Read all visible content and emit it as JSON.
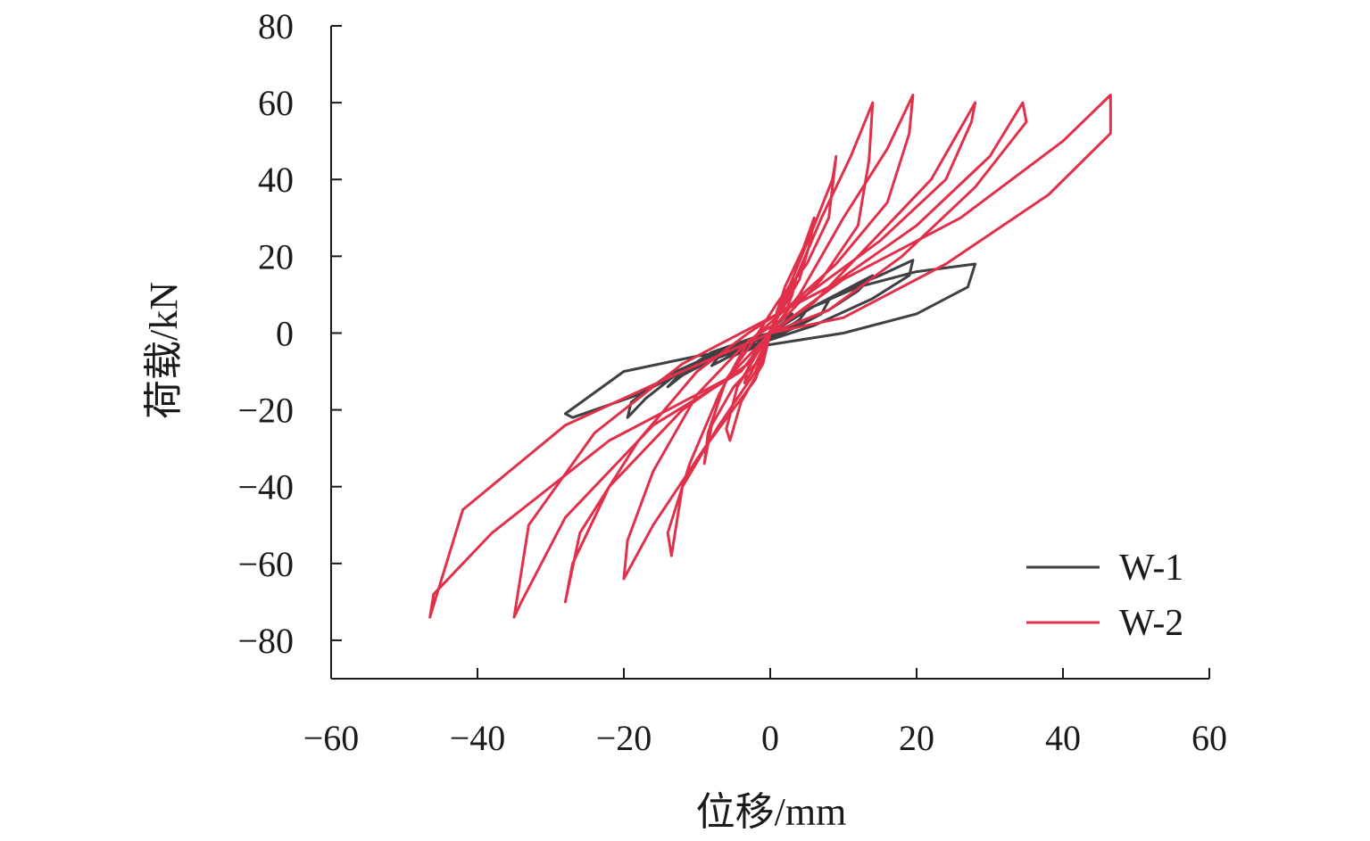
{
  "chart_data": {
    "type": "line",
    "xlabel": "位移/mm",
    "ylabel": "荷载/kN",
    "xlim": [
      -60,
      60
    ],
    "ylim": [
      -90,
      80
    ],
    "xticks": [
      -60,
      -40,
      -20,
      0,
      20,
      40,
      60
    ],
    "yticks": [
      -80,
      -60,
      -40,
      -20,
      0,
      20,
      40,
      60,
      80
    ],
    "grid": false,
    "legend_position": "bottom-right",
    "colors": {
      "W-1": "#3f4044",
      "W-2": "#e0304a",
      "axis": "#1a1a1a"
    },
    "series": [
      {
        "name": "W-1",
        "x": [
          0,
          0.5,
          1,
          2,
          3,
          2,
          1,
          0,
          -1,
          -2,
          -3,
          -2,
          -1,
          0,
          0,
          2,
          4,
          5,
          4,
          2,
          0,
          -2,
          -4,
          -5,
          -4,
          -2,
          0,
          0,
          3,
          6,
          8,
          7,
          4,
          0,
          -3,
          -6,
          -8,
          -7,
          -4,
          0,
          0,
          4,
          8,
          12,
          14,
          12,
          8,
          2,
          -4,
          -8,
          -12,
          -14,
          -12,
          -8,
          -2,
          0,
          0,
          5,
          10,
          15,
          19.5,
          19,
          14,
          6,
          -2,
          -8,
          -13,
          -17,
          -19.5,
          -19,
          -14,
          -6,
          0,
          0,
          6,
          12,
          20,
          28,
          27,
          20,
          10,
          0,
          -10,
          -20,
          -28,
          -27,
          -18,
          -8,
          0
        ],
        "y": [
          0,
          1.5,
          2.5,
          4,
          5,
          3,
          1,
          -0.5,
          -2,
          -3.5,
          -4.5,
          -3,
          -1.5,
          0,
          0,
          3,
          5,
          6,
          3.5,
          1,
          -1,
          -3,
          -5,
          -6,
          -4,
          -2,
          0,
          0,
          4,
          7,
          8.5,
          5,
          2,
          -1.5,
          -3.5,
          -6.5,
          -8.5,
          -6,
          -3,
          0,
          0,
          5,
          9,
          13,
          15,
          11,
          6,
          1,
          -3,
          -7,
          -11,
          -14,
          -10,
          -5,
          -1,
          0,
          0,
          6,
          11,
          15,
          19,
          15,
          9,
          2,
          -3,
          -7,
          -11,
          -17,
          -22,
          -18,
          -11,
          -4,
          0,
          0,
          7,
          12,
          16,
          18,
          12,
          5,
          0,
          -3,
          -6,
          -10,
          -21,
          -22,
          -16,
          -6,
          0
        ]
      },
      {
        "name": "W-2",
        "x": [
          0,
          1.5,
          2.5,
          3.5,
          3,
          2,
          0,
          -1.5,
          -2.5,
          -3.5,
          -3,
          -2,
          0,
          0,
          2,
          4.5,
          6,
          5.5,
          4,
          1,
          -2,
          -4.5,
          -6,
          -5.5,
          -4,
          -1,
          0,
          0,
          3,
          6,
          8.5,
          9,
          8,
          5,
          1,
          -3,
          -6,
          -8.5,
          -9,
          -8,
          -5,
          -1,
          0,
          0,
          3,
          7,
          11,
          14,
          13.5,
          12,
          7,
          2,
          -3,
          -7,
          -11,
          -14,
          -13.5,
          -12,
          -7,
          -2,
          0,
          0,
          4,
          10,
          16,
          19.5,
          19,
          16,
          9,
          2,
          -4,
          -10,
          -16,
          -19.5,
          -20,
          -16,
          -9,
          -2,
          0,
          0,
          6,
          14,
          22,
          28,
          27.5,
          24,
          15,
          5,
          -3,
          -10,
          -18,
          -26,
          -28,
          -27,
          -22,
          -12,
          -3,
          0,
          0,
          8,
          18,
          28,
          35,
          34.5,
          30,
          20,
          8,
          -2,
          -12,
          -24,
          -33,
          -35,
          -34,
          -28,
          -16,
          -4,
          0,
          0,
          10,
          24,
          38,
          46.5,
          46.5,
          40,
          26,
          10,
          0,
          -12,
          -28,
          -42,
          -46.5,
          -46,
          -38,
          -22,
          -6,
          0
        ],
        "y": [
          0,
          8,
          12,
          14,
          10,
          5,
          0,
          -6,
          -10,
          -13,
          -9,
          -4,
          0,
          0,
          12,
          22,
          30,
          24,
          14,
          4,
          -6,
          -14,
          -25,
          -28,
          -18,
          -8,
          0,
          0,
          14,
          28,
          40,
          46,
          30,
          18,
          8,
          -4,
          -12,
          -26,
          -34,
          -24,
          -14,
          -6,
          0,
          0,
          12,
          30,
          46,
          60,
          45,
          28,
          14,
          4,
          -2,
          -16,
          -34,
          -52,
          -58,
          -40,
          -24,
          -10,
          0,
          0,
          10,
          30,
          48,
          62,
          52,
          34,
          18,
          6,
          -4,
          -16,
          -36,
          -54,
          -64,
          -50,
          -30,
          -12,
          0,
          0,
          8,
          24,
          40,
          60,
          55,
          40,
          24,
          10,
          0,
          -10,
          -28,
          -52,
          -70,
          -60,
          -40,
          -20,
          -8,
          0,
          0,
          6,
          20,
          38,
          55,
          60,
          46,
          28,
          12,
          2,
          -8,
          -26,
          -50,
          -74,
          -70,
          -48,
          -24,
          -10,
          0,
          0,
          4,
          18,
          36,
          52,
          62,
          50,
          30,
          14,
          0,
          -10,
          -24,
          -46,
          -74,
          -68,
          -52,
          -28,
          -12,
          0
        ]
      }
    ]
  }
}
